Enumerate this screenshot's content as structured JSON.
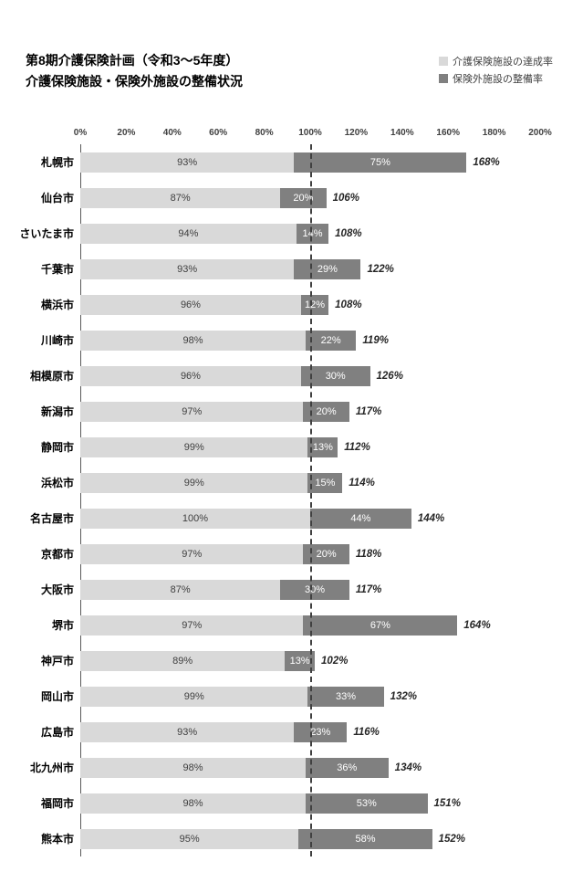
{
  "title": {
    "line1": "第8期介護保険計画（令和3～5年度）",
    "line2": "介護保険施設・保険外施設の整備状況"
  },
  "legend": [
    {
      "label": "介護保険施設の達成率",
      "color": "#d9d9d9"
    },
    {
      "label": "保険外施設の整備率",
      "color": "#808080"
    }
  ],
  "colors": {
    "series1": "#d9d9d9",
    "series2": "#808080",
    "reference_line": "#404040"
  },
  "chart_data": {
    "type": "bar",
    "orientation": "horizontal",
    "stacked": true,
    "title": "第8期介護保険計画（令和3～5年度） 介護保険施設・保険外施設の整備状況",
    "xlabel": "",
    "ylabel": "",
    "xlim": [
      0,
      200
    ],
    "reference_line": 100,
    "grid": false,
    "legend_position": "top-right",
    "x_ticks": [
      "0%",
      "20%",
      "40%",
      "60%",
      "80%",
      "100%",
      "120%",
      "140%",
      "160%",
      "180%",
      "200%"
    ],
    "categories": [
      "札幌市",
      "仙台市",
      "さいたま市",
      "千葉市",
      "横浜市",
      "川崎市",
      "相模原市",
      "新潟市",
      "静岡市",
      "浜松市",
      "名古屋市",
      "京都市",
      "大阪市",
      "堺市",
      "神戸市",
      "岡山市",
      "広島市",
      "北九州市",
      "福岡市",
      "熊本市"
    ],
    "series": [
      {
        "name": "介護保険施設の達成率",
        "values": [
          93,
          87,
          94,
          93,
          96,
          98,
          96,
          97,
          99,
          99,
          100,
          97,
          87,
          97,
          89,
          99,
          93,
          98,
          98,
          95
        ],
        "labels": [
          "93%",
          "87%",
          "94%",
          "93%",
          "96%",
          "98%",
          "96%",
          "97%",
          "99%",
          "99%",
          "100%",
          "97%",
          "87%",
          "97%",
          "89%",
          "99%",
          "93%",
          "98%",
          "98%",
          "95%"
        ]
      },
      {
        "name": "保険外施設の整備率",
        "values": [
          75,
          20,
          14,
          29,
          12,
          22,
          30,
          20,
          13,
          15,
          44,
          20,
          30,
          67,
          13,
          33,
          23,
          36,
          53,
          58
        ],
        "labels": [
          "75%",
          "20%",
          "14%",
          "29%",
          "12%",
          "22%",
          "30%",
          "20%",
          "13%",
          "15%",
          "44%",
          "20%",
          "30%",
          "67%",
          "13%",
          "33%",
          "23%",
          "36%",
          "53%",
          "58%"
        ]
      }
    ],
    "totals": [
      "168%",
      "106%",
      "108%",
      "122%",
      "108%",
      "119%",
      "126%",
      "117%",
      "112%",
      "114%",
      "144%",
      "118%",
      "117%",
      "164%",
      "102%",
      "132%",
      "116%",
      "134%",
      "151%",
      "152%"
    ]
  }
}
